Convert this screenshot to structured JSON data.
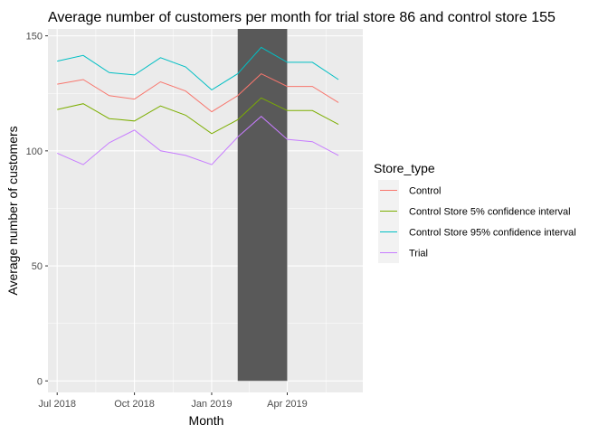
{
  "chart_data": {
    "type": "line",
    "title": "Average number of customers per month for trial store 86 and control store 155",
    "xlabel": "Month",
    "ylabel": "Average number of customers",
    "x": [
      "2018-07",
      "2018-08",
      "2018-09",
      "2018-10",
      "2018-11",
      "2018-12",
      "2019-01",
      "2019-02",
      "2019-03",
      "2019-04",
      "2019-05",
      "2019-06"
    ],
    "x_ticks": [
      {
        "month": "2018-07",
        "label": "Jul 2018"
      },
      {
        "month": "2018-10",
        "label": "Oct 2018"
      },
      {
        "month": "2019-01",
        "label": "Jan 2019"
      },
      {
        "month": "2019-04",
        "label": "Apr 2019"
      }
    ],
    "y_ticks": [
      0,
      50,
      100,
      150
    ],
    "ylim": [
      -5,
      153
    ],
    "xlim": [
      "2018-06-20",
      "2019-06-30"
    ],
    "grid": true,
    "legend": {
      "title": "Store_type",
      "position": "right"
    },
    "highlight": {
      "from": "2019-02",
      "to": "2019-04",
      "color": "#595959"
    },
    "series": [
      {
        "name": "Control",
        "color": "#F8766D",
        "values": [
          129,
          131,
          124,
          122.5,
          130,
          126,
          117,
          124,
          133.5,
          128,
          128,
          121
        ]
      },
      {
        "name": "Control Store 5% confidence interval",
        "color": "#7CAE00",
        "values": [
          118,
          120.5,
          114,
          113,
          119.5,
          115.5,
          107.5,
          113.5,
          123,
          117.5,
          117.5,
          111.5
        ]
      },
      {
        "name": "Control Store 95% confidence interval",
        "color": "#00BFC4",
        "values": [
          139,
          141.5,
          134,
          133,
          140.5,
          136.5,
          126.5,
          133.5,
          145,
          138.5,
          138.5,
          131
        ]
      },
      {
        "name": "Trial",
        "color": "#C77CFF",
        "values": [
          99,
          94,
          103.5,
          109,
          100,
          98,
          94,
          106,
          115,
          105,
          104,
          98
        ]
      }
    ]
  }
}
